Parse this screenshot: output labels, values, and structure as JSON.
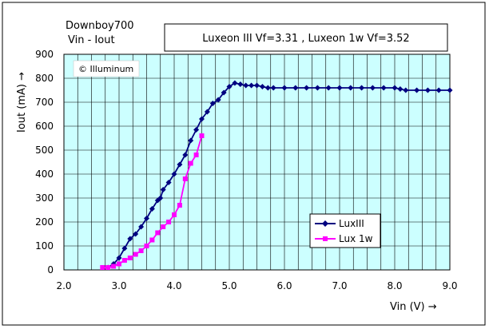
{
  "chart_data": {
    "type": "line",
    "title": "Downboy700",
    "subtitle": "Vin - Iout",
    "annotation": "Luxeon III Vf=3.31 , Luxeon 1w Vf=3.52",
    "watermark": "© Illuminum",
    "xlabel": "Vin (V) →",
    "ylabel": "Iout (mA) →",
    "xlim": [
      2.0,
      9.0
    ],
    "ylim": [
      0,
      900
    ],
    "xticks": [
      "2.0",
      "3.0",
      "4.0",
      "5.0",
      "6.0",
      "7.0",
      "8.0",
      "9.0"
    ],
    "yticks": [
      "0",
      "100",
      "200",
      "300",
      "400",
      "500",
      "600",
      "700",
      "800",
      "900"
    ],
    "grid": true,
    "plot_background": "#ccffff",
    "legend_position": "right-center",
    "series": [
      {
        "name": "LuxIII",
        "color": "#000080",
        "marker": "diamond",
        "points": [
          [
            2.8,
            10
          ],
          [
            2.9,
            25
          ],
          [
            3.0,
            50
          ],
          [
            3.1,
            90
          ],
          [
            3.2,
            130
          ],
          [
            3.3,
            150
          ],
          [
            3.4,
            180
          ],
          [
            3.5,
            215
          ],
          [
            3.6,
            255
          ],
          [
            3.7,
            290
          ],
          [
            3.75,
            300
          ],
          [
            3.8,
            335
          ],
          [
            3.9,
            365
          ],
          [
            4.0,
            400
          ],
          [
            4.1,
            440
          ],
          [
            4.2,
            480
          ],
          [
            4.3,
            540
          ],
          [
            4.4,
            585
          ],
          [
            4.5,
            630
          ],
          [
            4.6,
            660
          ],
          [
            4.7,
            695
          ],
          [
            4.8,
            710
          ],
          [
            4.9,
            740
          ],
          [
            5.0,
            765
          ],
          [
            5.1,
            780
          ],
          [
            5.2,
            775
          ],
          [
            5.3,
            770
          ],
          [
            5.4,
            770
          ],
          [
            5.5,
            770
          ],
          [
            5.6,
            765
          ],
          [
            5.7,
            760
          ],
          [
            5.8,
            760
          ],
          [
            6.0,
            760
          ],
          [
            6.2,
            760
          ],
          [
            6.4,
            760
          ],
          [
            6.6,
            760
          ],
          [
            6.8,
            760
          ],
          [
            7.0,
            760
          ],
          [
            7.2,
            760
          ],
          [
            7.4,
            760
          ],
          [
            7.6,
            760
          ],
          [
            7.8,
            760
          ],
          [
            8.0,
            760
          ],
          [
            8.1,
            755
          ],
          [
            8.2,
            750
          ],
          [
            8.4,
            750
          ],
          [
            8.6,
            750
          ],
          [
            8.8,
            750
          ],
          [
            9.0,
            750
          ]
        ]
      },
      {
        "name": "Lux 1w",
        "color": "#ff00ff",
        "marker": "square",
        "points": [
          [
            2.7,
            10
          ],
          [
            2.8,
            10
          ],
          [
            2.9,
            15
          ],
          [
            3.0,
            25
          ],
          [
            3.1,
            40
          ],
          [
            3.2,
            50
          ],
          [
            3.3,
            65
          ],
          [
            3.4,
            80
          ],
          [
            3.5,
            100
          ],
          [
            3.6,
            125
          ],
          [
            3.7,
            155
          ],
          [
            3.8,
            180
          ],
          [
            3.9,
            200
          ],
          [
            4.0,
            230
          ],
          [
            4.1,
            270
          ],
          [
            4.2,
            380
          ],
          [
            4.3,
            445
          ],
          [
            4.4,
            480
          ],
          [
            4.5,
            560
          ]
        ]
      }
    ]
  }
}
